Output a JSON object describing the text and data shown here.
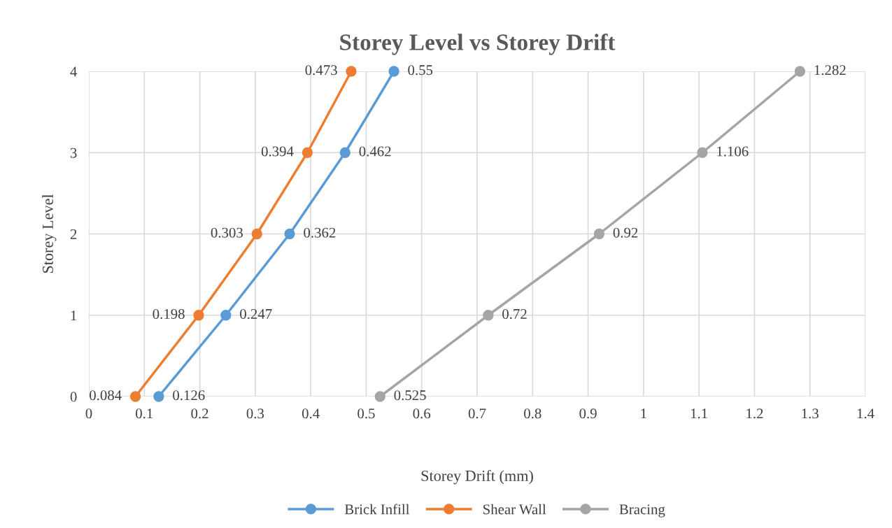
{
  "chart_data": {
    "type": "line",
    "title": "Storey Level vs Storey Drift",
    "xlabel": "Storey Drift (mm)",
    "ylabel": "Storey Level",
    "series": [
      {
        "name": "Brick Infill",
        "color": "#5b9bd5",
        "x": [
          0.126,
          0.247,
          0.362,
          0.462,
          0.55
        ],
        "values": [
          0,
          1,
          2,
          3,
          4
        ]
      },
      {
        "name": "Shear Wall",
        "color": "#ed7d31",
        "x": [
          0.084,
          0.198,
          0.303,
          0.394,
          0.473
        ],
        "values": [
          0,
          1,
          2,
          3,
          4
        ]
      },
      {
        "name": "Bracing",
        "color": "#a5a5a5",
        "x": [
          0.525,
          0.72,
          0.92,
          1.106,
          1.282
        ],
        "values": [
          0,
          1,
          2,
          3,
          4
        ]
      }
    ],
    "annotations": [
      {
        "text": "0.126",
        "x": 0.126,
        "y": 0
      },
      {
        "text": "0.247",
        "x": 0.247,
        "y": 1
      },
      {
        "text": "0.362",
        "x": 0.362,
        "y": 2
      },
      {
        "text": "0.462",
        "x": 0.462,
        "y": 3
      },
      {
        "text": "0.55",
        "x": 0.55,
        "y": 4
      },
      {
        "text": "0.084",
        "x": 0.084,
        "y": 0
      },
      {
        "text": "0.198",
        "x": 0.198,
        "y": 1
      },
      {
        "text": "0.303",
        "x": 0.303,
        "y": 2
      },
      {
        "text": "0.394",
        "x": 0.394,
        "y": 3
      },
      {
        "text": "0.473",
        "x": 0.473,
        "y": 4
      },
      {
        "text": "0.525",
        "x": 0.525,
        "y": 0
      },
      {
        "text": "0.72",
        "x": 0.72,
        "y": 1
      },
      {
        "text": "0.92",
        "x": 0.92,
        "y": 2
      },
      {
        "text": "1.106",
        "x": 1.106,
        "y": 3
      },
      {
        "text": "1.282",
        "x": 1.282,
        "y": 4
      }
    ],
    "xlim": [
      0,
      1.4
    ],
    "xticks": [
      0,
      0.1,
      0.2,
      0.3,
      0.4,
      0.5,
      0.6,
      0.7,
      0.8,
      0.9,
      1,
      1.1,
      1.2,
      1.3,
      1.4
    ],
    "ylim": [
      0,
      4
    ],
    "yticks": [
      0,
      1,
      2,
      3,
      4
    ],
    "grid": true,
    "legend": "bottom",
    "marker": "circle",
    "line_style": "solid"
  }
}
